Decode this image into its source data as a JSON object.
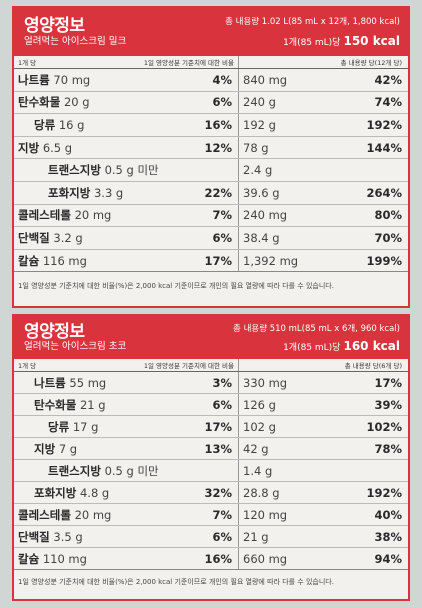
{
  "panels": [
    {
      "title": "영양정보",
      "product": "얼려먹는 아이스크림 밀크",
      "total": "총 내용량 1.02 L(85 mL x 12개, 1,800 kcal)",
      "serving": "1개(85 mL)당",
      "kcal": "150 kcal",
      "col_left_a": "1개 당",
      "col_left_b": "1일 영양성분 기준치에 대한 비율",
      "col_right": "총 내용량 당(12개 당)",
      "rows": [
        {
          "name": "나트륨",
          "amt": "70 mg",
          "pct": "4%",
          "tamt": "840 mg",
          "tpct": "42%"
        },
        {
          "name": "탄수화물",
          "amt": "20 g",
          "pct": "6%",
          "tamt": "240 g",
          "tpct": "74%"
        },
        {
          "name": "당류",
          "amt": "16 g",
          "pct": "16%",
          "tamt": "192 g",
          "tpct": "192%"
        },
        {
          "name": "지방",
          "amt": "6.5 g",
          "pct": "12%",
          "tamt": "78 g",
          "tpct": "144%"
        },
        {
          "name": "트랜스지방",
          "amt": "0.5 g 미만",
          "pct": "",
          "tamt": "2.4 g",
          "tpct": ""
        },
        {
          "name": "포화지방",
          "amt": "3.3 g",
          "pct": "22%",
          "tamt": "39.6 g",
          "tpct": "264%"
        },
        {
          "name": "콜레스테롤",
          "amt": "20 mg",
          "pct": "7%",
          "tamt": "240 mg",
          "tpct": "80%"
        },
        {
          "name": "단백질",
          "amt": "3.2 g",
          "pct": "6%",
          "tamt": "38.4 g",
          "tpct": "70%"
        },
        {
          "name": "칼슘",
          "amt": "116 mg",
          "pct": "17%",
          "tamt": "1,392 mg",
          "tpct": "199%"
        }
      ],
      "footnote": "1일 영양성분 기준치에 대한 비율(%)은 2,000 kcal 기준이므로 개인의 필요 열량에 따라 다를 수 있습니다."
    },
    {
      "title": "영양정보",
      "product": "얼려먹는 아이스크림 초코",
      "total": "총 내용량 510 mL(85 mL x 6개, 960 kcal)",
      "serving": "1개(85 mL)당",
      "kcal": "160 kcal",
      "col_left_a": "1개 당",
      "col_left_b": "1일 영양성분 기준치에 대한 비율",
      "col_right": "총 내용량 당(6개 당)",
      "rows": [
        {
          "name": "나트륨",
          "amt": "55 mg",
          "pct": "3%",
          "tamt": "330 mg",
          "tpct": "17%"
        },
        {
          "name": "탄수화물",
          "amt": "21 g",
          "pct": "6%",
          "tamt": "126 g",
          "tpct": "39%"
        },
        {
          "name": "당류",
          "amt": "17 g",
          "pct": "17%",
          "tamt": "102 g",
          "tpct": "102%"
        },
        {
          "name": "지방",
          "amt": "7 g",
          "pct": "13%",
          "tamt": "42 g",
          "tpct": "78%"
        },
        {
          "name": "트랜스지방",
          "amt": "0.5 g 미만",
          "pct": "",
          "tamt": "1.4 g",
          "tpct": ""
        },
        {
          "name": "포화지방",
          "amt": "4.8 g",
          "pct": "32%",
          "tamt": "28.8 g",
          "tpct": "192%"
        },
        {
          "name": "콜레스테롤",
          "amt": "20 mg",
          "pct": "7%",
          "tamt": "120 mg",
          "tpct": "40%"
        },
        {
          "name": "단백질",
          "amt": "3.5 g",
          "pct": "6%",
          "tamt": "21 g",
          "tpct": "38%"
        },
        {
          "name": "칼슘",
          "amt": "110 mg",
          "pct": "16%",
          "tamt": "660 mg",
          "tpct": "94%"
        }
      ],
      "footnote": "1일 영양성분 기준치에 대한 비율(%)은 2,000 kcal 기준이므로 개인의 필요 열량에 따라 다를 수 있습니다."
    }
  ],
  "colors": {
    "accent": "#d9343d",
    "panel_bg": "#f3f1ee",
    "background": "#cfd6d3"
  }
}
